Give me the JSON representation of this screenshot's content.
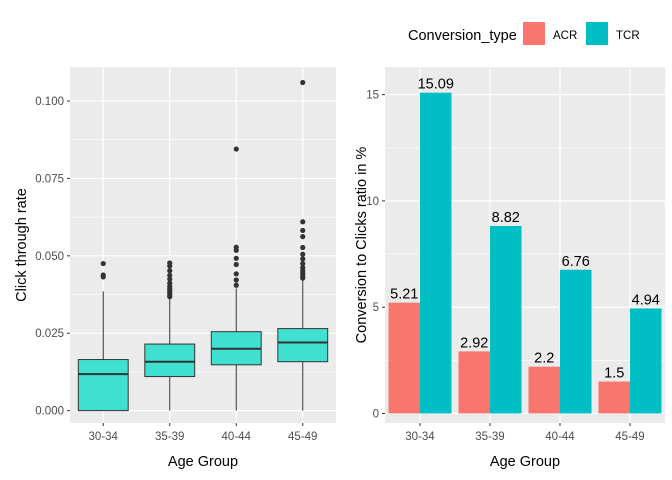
{
  "chart_data": [
    {
      "type": "box",
      "xlabel": "Age Group",
      "ylabel": "Click through rate",
      "categories": [
        "30-34",
        "35-39",
        "40-44",
        "45-49"
      ],
      "ylim": [
        -0.004,
        0.111
      ],
      "yticks": [
        0.0,
        0.025,
        0.05,
        0.075,
        0.1
      ],
      "ytick_labels": [
        "0.000",
        "0.025",
        "0.050",
        "0.075",
        "0.100"
      ],
      "fill": "#40E0D0",
      "boxes": [
        {
          "min": 0.0,
          "q1": 0.0,
          "median": 0.0118,
          "q3": 0.0165,
          "max": 0.0385,
          "outliers": [
            0.0432,
            0.0438,
            0.0475
          ]
        },
        {
          "min": 0.0,
          "q1": 0.011,
          "median": 0.0158,
          "q3": 0.0215,
          "max": 0.0365,
          "outliers": [
            0.0368,
            0.0374,
            0.038,
            0.0387,
            0.0394,
            0.0402,
            0.0412,
            0.0425,
            0.0437,
            0.0452,
            0.0467,
            0.0477
          ]
        },
        {
          "min": 0.0,
          "q1": 0.0148,
          "median": 0.02,
          "q3": 0.0255,
          "max": 0.0395,
          "outliers": [
            0.0405,
            0.0422,
            0.0442,
            0.0472,
            0.0492,
            0.0518,
            0.0528,
            0.0845
          ]
        },
        {
          "min": 0.0,
          "q1": 0.0158,
          "median": 0.022,
          "q3": 0.0265,
          "max": 0.042,
          "outliers": [
            0.0428,
            0.0436,
            0.0444,
            0.0452,
            0.0462,
            0.0475,
            0.049,
            0.0505,
            0.0527,
            0.0562,
            0.0582,
            0.061,
            0.106
          ]
        }
      ]
    },
    {
      "type": "bar",
      "xlabel": "Age Group",
      "ylabel": "Conversion to Clicks ratio in %",
      "categories": [
        "30-34",
        "35-39",
        "40-44",
        "45-49"
      ],
      "ylim": [
        -0.45,
        16.3
      ],
      "yticks": [
        0,
        5,
        10,
        15
      ],
      "ytick_labels": [
        "0",
        "5",
        "10",
        "15"
      ],
      "legend": {
        "title": "Conversion_type",
        "position": "top"
      },
      "series": [
        {
          "name": "ACR",
          "color": "#F8766D",
          "values": [
            5.21,
            2.92,
            2.2,
            1.5
          ],
          "labels": [
            "5.21",
            "2.92",
            "2.2",
            "1.5"
          ]
        },
        {
          "name": "TCR",
          "color": "#00BFC4",
          "values": [
            15.09,
            8.82,
            6.76,
            4.94
          ],
          "labels": [
            "15.09",
            "8.82",
            "6.76",
            "4.94"
          ]
        }
      ]
    }
  ]
}
